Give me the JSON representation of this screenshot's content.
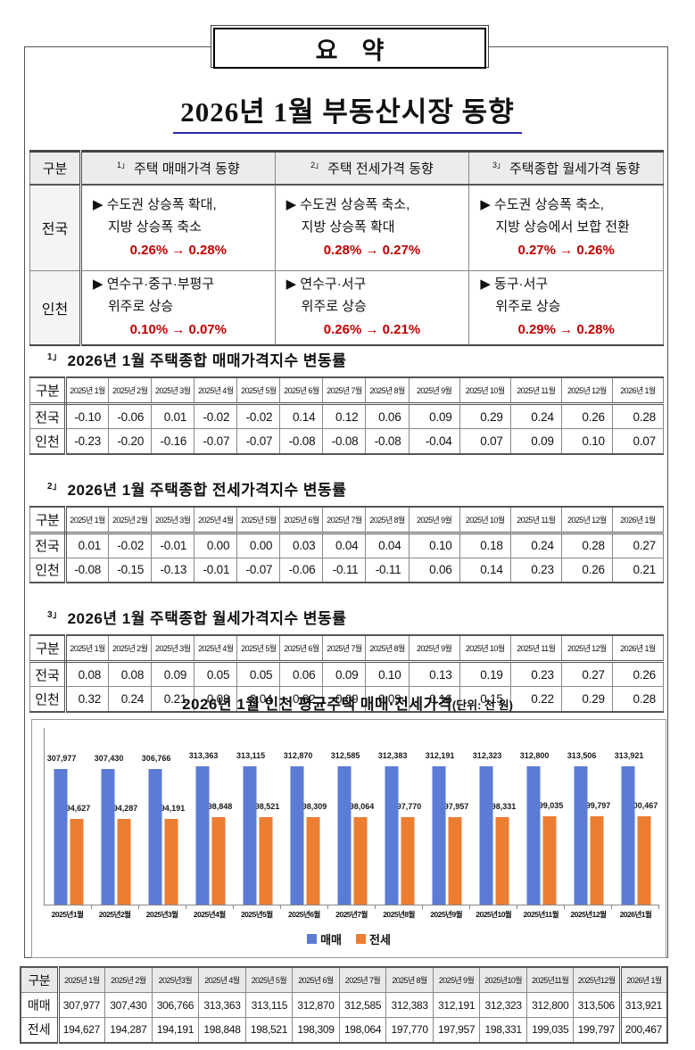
{
  "labels": {
    "gubun": "구분"
  },
  "doc": {
    "summary_label": "요    약",
    "title": "2026년 1월 부동산시장 동향"
  },
  "summary_table": {
    "columns": [
      {
        "sup": "1」",
        "label": "주택 매매가격 동향"
      },
      {
        "sup": "2」",
        "label": "주택 전세가격 동향"
      },
      {
        "sup": "3」",
        "label": "주택종합 월세가격 동향"
      }
    ],
    "rows": [
      {
        "region": "전국",
        "cells": [
          {
            "line1": "▶ 수도권 상승폭 확대,",
            "line2": "지방 상승폭 축소",
            "change": "0.26% → 0.28%"
          },
          {
            "line1": "▶ 수도권 상승폭 축소,",
            "line2": "지방 상승폭 확대",
            "change": "0.28% → 0.27%"
          },
          {
            "line1": "▶ 수도권 상승폭 축소,",
            "line2": "지방 상승에서 보합 전환",
            "change": "0.27% → 0.26%"
          }
        ]
      },
      {
        "region": "인천",
        "cells": [
          {
            "line1": "▶ 연수구·중구·부평구",
            "line2": "위주로 상승",
            "change": "0.10% → 0.07%"
          },
          {
            "line1": "▶ 연수구·서구",
            "line2": "위주로 상승",
            "change": "0.26% → 0.21%"
          },
          {
            "line1": "▶ 동구·서구",
            "line2": "위주로 상승",
            "change": "0.29% → 0.28%"
          }
        ]
      }
    ]
  },
  "months": [
    "2025년 1월",
    "2025년 2월",
    "2025년 3월",
    "2025년 4월",
    "2025년 5월",
    "2025년 6월",
    "2025년 7월",
    "2025년 8월",
    "2025년 9월",
    "2025년 10월",
    "2025년 11월",
    "2025년 12월",
    "2026년 1월"
  ],
  "index_tables": [
    {
      "sup": "1」",
      "title": "2026년 1월 주택종합 매매가격지수 변동률",
      "rows": [
        {
          "region": "전국",
          "values": [
            "-0.10",
            "-0.06",
            "0.01",
            "-0.02",
            "-0.02",
            "0.14",
            "0.12",
            "0.06",
            "0.09",
            "0.29",
            "0.24",
            "0.26",
            "0.28"
          ]
        },
        {
          "region": "인천",
          "values": [
            "-0.23",
            "-0.20",
            "-0.16",
            "-0.07",
            "-0.07",
            "-0.08",
            "-0.08",
            "-0.08",
            "-0.04",
            "0.07",
            "0.09",
            "0.10",
            "0.07"
          ]
        }
      ]
    },
    {
      "sup": "2」",
      "title": "2026년 1월 주택종합 전세가격지수 변동률",
      "rows": [
        {
          "region": "전국",
          "values": [
            "0.01",
            "-0.02",
            "-0.01",
            "0.00",
            "0.00",
            "0.03",
            "0.04",
            "0.04",
            "0.10",
            "0.18",
            "0.24",
            "0.28",
            "0.27"
          ]
        },
        {
          "region": "인천",
          "values": [
            "-0.08",
            "-0.15",
            "-0.13",
            "-0.01",
            "-0.07",
            "-0.06",
            "-0.11",
            "-0.11",
            "0.06",
            "0.14",
            "0.23",
            "0.26",
            "0.21"
          ]
        }
      ]
    },
    {
      "sup": "3」",
      "title": "2026년 1월 주택종합 월세가격지수 변동률",
      "rows": [
        {
          "region": "전국",
          "values": [
            "0.08",
            "0.08",
            "0.09",
            "0.05",
            "0.05",
            "0.06",
            "0.09",
            "0.10",
            "0.13",
            "0.19",
            "0.23",
            "0.27",
            "0.26"
          ]
        },
        {
          "region": "인천",
          "values": [
            "0.32",
            "0.24",
            "0.21",
            "0.08",
            "0.04",
            "0.02",
            "0.09",
            "0.09",
            "0.16",
            "0.15",
            "0.22",
            "0.29",
            "0.28"
          ]
        }
      ]
    }
  ],
  "chart_data": {
    "type": "bar",
    "title": "2026년 1월 인천 평균주택 매매·전세가격",
    "unit_label": "(단위: 천 원)",
    "categories": [
      "2025년1월",
      "2025년2월",
      "2025년3월",
      "2025년4월",
      "2025년5월",
      "2025년6월",
      "2025년7월",
      "2025년8월",
      "2025년9월",
      "2025년10월",
      "2025년11월",
      "2025년12월",
      "2026년1월"
    ],
    "series": [
      {
        "name": "매매",
        "color": "#5B7BD5",
        "values": [
          307977,
          307430,
          306766,
          313363,
          313115,
          312870,
          312585,
          312383,
          312191,
          312323,
          312800,
          313506,
          313921
        ]
      },
      {
        "name": "전세",
        "color": "#ED7D31",
        "values": [
          194627,
          194287,
          194191,
          198848,
          198521,
          198309,
          198064,
          197770,
          197957,
          198331,
          199035,
          199797,
          200467
        ]
      }
    ],
    "ylim": [
      0,
      400000
    ],
    "grid": false,
    "legend_position": "bottom",
    "data_labels": true
  },
  "bottom_table": {
    "months": [
      "2025년 1월",
      "2025년 2월",
      "2025년3월",
      "2025년 4월",
      "2025년 5월",
      "2025년 6월",
      "2025년 7월",
      "2025년 8월",
      "2025년 9월",
      "2025년10월",
      "2025년11월",
      "2025년12월",
      "2026년 1월"
    ],
    "rows": [
      {
        "label": "매매",
        "values": [
          "307,977",
          "307,430",
          "306,766",
          "313,363",
          "313,115",
          "312,870",
          "312,585",
          "312,383",
          "312,191",
          "312,323",
          "312,800",
          "313,506",
          "313,921"
        ]
      },
      {
        "label": "전세",
        "values": [
          "194,627",
          "194,287",
          "194,191",
          "198,848",
          "198,521",
          "198,309",
          "198,064",
          "197,770",
          "197,957",
          "198,331",
          "199,035",
          "199,797",
          "200,467"
        ]
      }
    ]
  }
}
